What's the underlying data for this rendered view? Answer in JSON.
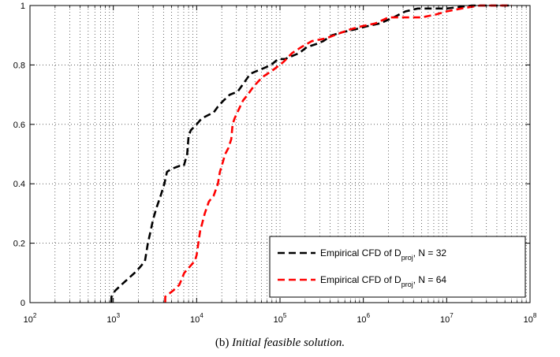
{
  "chart_data": {
    "type": "line",
    "xscale": "log",
    "xlim": [
      100,
      100000000
    ],
    "ylim": [
      0,
      1
    ],
    "grid": true,
    "x_ticks": [
      {
        "base": "10",
        "exp": "2"
      },
      {
        "base": "10",
        "exp": "3"
      },
      {
        "base": "10",
        "exp": "4"
      },
      {
        "base": "10",
        "exp": "5"
      },
      {
        "base": "10",
        "exp": "6"
      },
      {
        "base": "10",
        "exp": "7"
      },
      {
        "base": "10",
        "exp": "8"
      }
    ],
    "y_ticks": [
      "0",
      "0.2",
      "0.4",
      "0.6",
      "0.8",
      "1"
    ],
    "legend_position": "lower-right",
    "series": [
      {
        "name": "Empirical CFD of D",
        "name_sub": "proj",
        "name_suffix": ", N = 32",
        "color": "#000000",
        "points": [
          [
            950,
            0
          ],
          [
            950,
            0.02
          ],
          [
            1050,
            0.04
          ],
          [
            1250,
            0.06
          ],
          [
            1500,
            0.08
          ],
          [
            1800,
            0.1
          ],
          [
            2100,
            0.12
          ],
          [
            2400,
            0.14
          ],
          [
            2600,
            0.2
          ],
          [
            2800,
            0.24
          ],
          [
            3000,
            0.28
          ],
          [
            3300,
            0.32
          ],
          [
            3700,
            0.36
          ],
          [
            4100,
            0.4
          ],
          [
            4400,
            0.44
          ],
          [
            5000,
            0.45
          ],
          [
            6200,
            0.46
          ],
          [
            7000,
            0.46
          ],
          [
            7700,
            0.5
          ],
          [
            8000,
            0.56
          ],
          [
            8500,
            0.58
          ],
          [
            10000,
            0.6
          ],
          [
            11500,
            0.62
          ],
          [
            13500,
            0.63
          ],
          [
            16000,
            0.64
          ],
          [
            18000,
            0.66
          ],
          [
            21000,
            0.68
          ],
          [
            25000,
            0.7
          ],
          [
            31000,
            0.71
          ],
          [
            37000,
            0.74
          ],
          [
            44000,
            0.77
          ],
          [
            53000,
            0.78
          ],
          [
            65000,
            0.79
          ],
          [
            78000,
            0.8
          ],
          [
            95000,
            0.82
          ],
          [
            115000,
            0.82
          ],
          [
            140000,
            0.83
          ],
          [
            170000,
            0.84
          ],
          [
            210000,
            0.86
          ],
          [
            270000,
            0.87
          ],
          [
            330000,
            0.88
          ],
          [
            420000,
            0.9
          ],
          [
            560000,
            0.91
          ],
          [
            800000,
            0.92
          ],
          [
            1100000,
            0.93
          ],
          [
            1600000,
            0.94
          ],
          [
            2300000,
            0.96
          ],
          [
            3200000,
            0.98
          ],
          [
            4500000,
            0.99
          ],
          [
            6500000,
            0.99
          ],
          [
            10000000,
            0.99
          ],
          [
            20000000,
            1.0
          ],
          [
            60000000,
            1.0
          ]
        ]
      },
      {
        "name": "Empirical CFD of D",
        "name_sub": "proj",
        "name_suffix": ", N = 64",
        "color": "#ff0000",
        "points": [
          [
            4200,
            0
          ],
          [
            4200,
            0.02
          ],
          [
            5200,
            0.04
          ],
          [
            6200,
            0.06
          ],
          [
            7100,
            0.1
          ],
          [
            8200,
            0.12
          ],
          [
            9500,
            0.14
          ],
          [
            10000,
            0.16
          ],
          [
            11000,
            0.24
          ],
          [
            12500,
            0.3
          ],
          [
            14000,
            0.34
          ],
          [
            16000,
            0.36
          ],
          [
            18000,
            0.4
          ],
          [
            19000,
            0.44
          ],
          [
            20000,
            0.46
          ],
          [
            22000,
            0.5
          ],
          [
            24000,
            0.52
          ],
          [
            26000,
            0.55
          ],
          [
            27000,
            0.6
          ],
          [
            28500,
            0.62
          ],
          [
            32000,
            0.65
          ],
          [
            36000,
            0.68
          ],
          [
            41000,
            0.7
          ],
          [
            46000,
            0.72
          ],
          [
            53000,
            0.74
          ],
          [
            62000,
            0.76
          ],
          [
            80000,
            0.78
          ],
          [
            110000,
            0.81
          ],
          [
            140000,
            0.84
          ],
          [
            180000,
            0.86
          ],
          [
            240000,
            0.88
          ],
          [
            360000,
            0.89
          ],
          [
            450000,
            0.9
          ],
          [
            560000,
            0.91
          ],
          [
            700000,
            0.92
          ],
          [
            950000,
            0.93
          ],
          [
            1400000,
            0.94
          ],
          [
            2000000,
            0.96
          ],
          [
            3000000,
            0.96
          ],
          [
            5000000,
            0.96
          ],
          [
            7500000,
            0.97
          ],
          [
            10000000,
            0.98
          ],
          [
            15000000,
            0.99
          ],
          [
            25000000,
            1.0
          ],
          [
            60000000,
            1.0
          ]
        ]
      }
    ]
  },
  "caption": {
    "label": "(b)",
    "title": "Initial feasible solution."
  }
}
